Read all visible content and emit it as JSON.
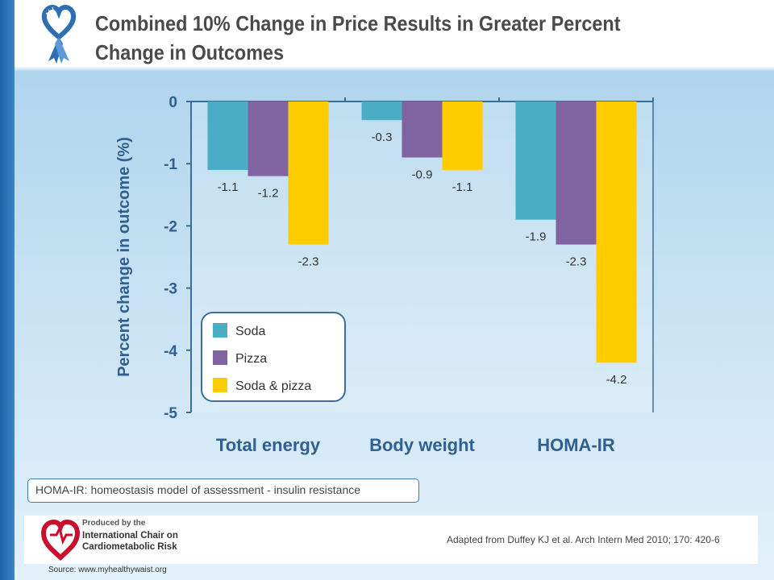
{
  "slide": {
    "title": "Combined 10% Change in Price Results in Greater Percent Change in Outcomes",
    "note": "HOMA-IR: homeostasis model of assessment - insulin resistance",
    "citation": "Adapted from Duffey KJ et al. Arch Intern Med 2010; 170: 420-6",
    "source": "Source: www.myhealthywaist.org",
    "logo": {
      "line1": "Produced by the",
      "line2": "International Chair on",
      "line3": "Cardiometabolic Risk"
    }
  },
  "chart_data": {
    "type": "bar",
    "title": "",
    "xlabel": "",
    "ylabel": "Percent change in outcome (%)",
    "ylim": [
      -5,
      0
    ],
    "yticks": [
      0,
      -1,
      -2,
      -3,
      -4,
      -5
    ],
    "ytick_labels": [
      "0",
      "-1",
      "-2",
      "-3",
      "-4",
      "-5"
    ],
    "categories": [
      "Total energy",
      "Body weight",
      "HOMA-IR"
    ],
    "series": [
      {
        "name": "Soda",
        "color": "#4bacc6",
        "values": [
          -1.1,
          -0.3,
          -1.9
        ],
        "labels": [
          "-1.1",
          "-0.3",
          "-1.9"
        ]
      },
      {
        "name": "Pizza",
        "color": "#8064a2",
        "values": [
          -1.2,
          -0.9,
          -2.3
        ],
        "labels": [
          "-1.2",
          "-0.9",
          "-2.3"
        ]
      },
      {
        "name": "Soda & pizza",
        "color": "#ffcc00",
        "values": [
          -2.3,
          -1.1,
          -4.2
        ],
        "labels": [
          "-2.3",
          "-1.1",
          "-4.2"
        ]
      }
    ],
    "legend_position": "inside-lower-left",
    "grid": false
  }
}
